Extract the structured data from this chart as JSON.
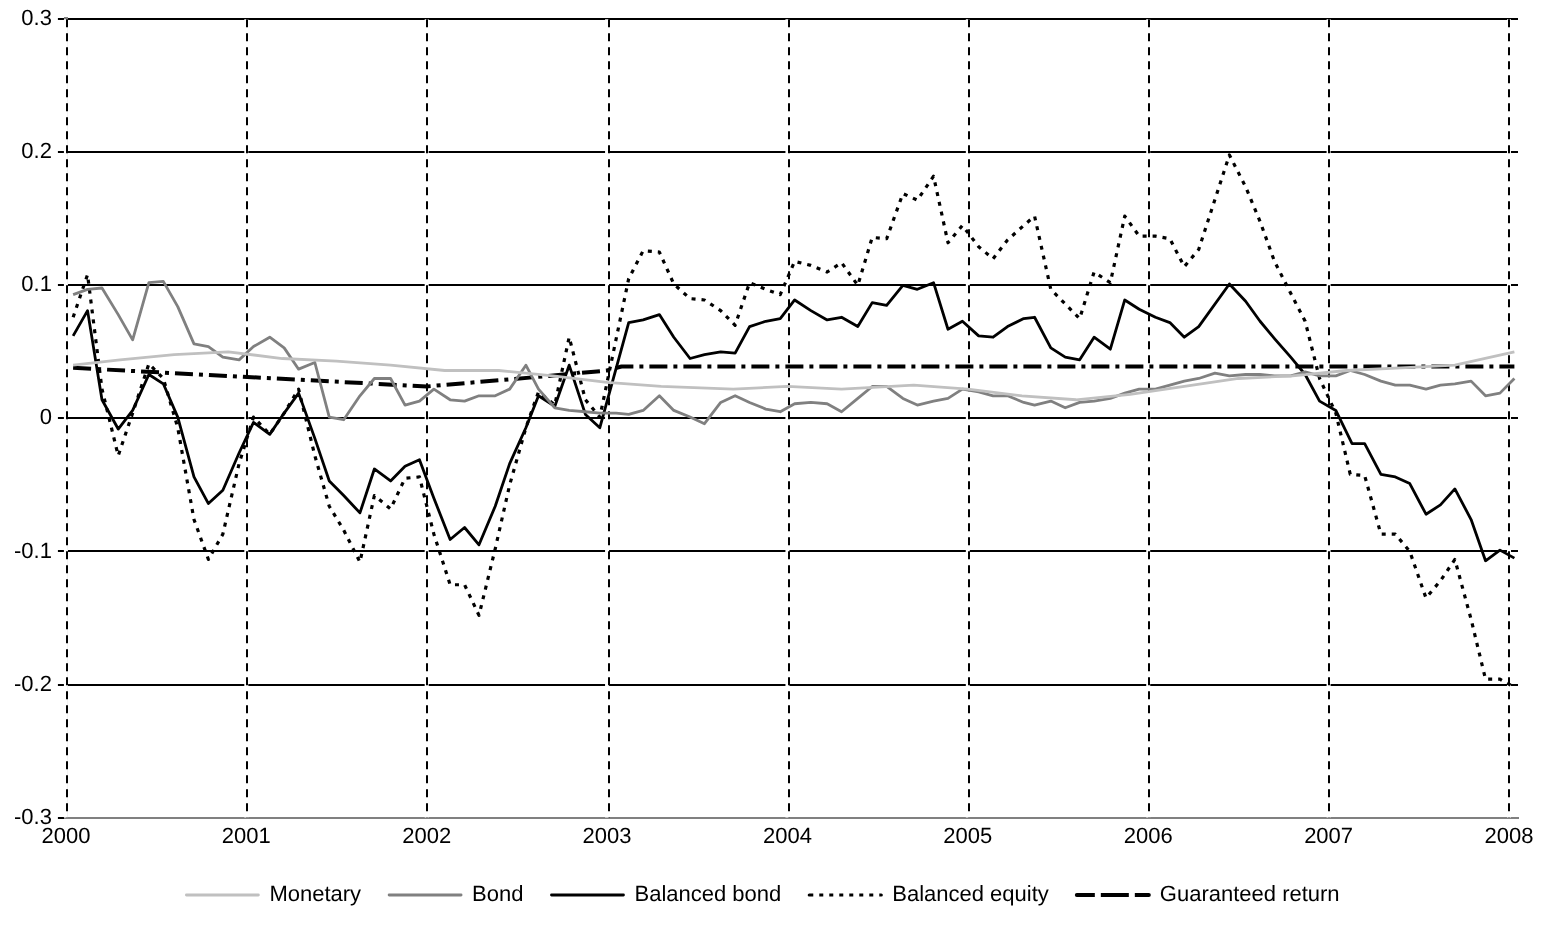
{
  "chart_data": {
    "type": "line",
    "xlim": [
      2000,
      2008.05
    ],
    "xticks": [
      2000,
      2001,
      2002,
      2003,
      2004,
      2005,
      2006,
      2007,
      2008
    ],
    "ylim": [
      -0.3,
      0.3
    ],
    "yticks": [
      -0.3,
      -0.2,
      -0.1,
      0,
      0.1,
      0.2,
      0.3
    ],
    "grid": true,
    "legend": "bottom",
    "marker": "none",
    "series": [
      {
        "name": "Monetary",
        "color": "#c0c0c0",
        "line_style": "solid",
        "x": [
          2000.04,
          2000.3,
          2000.6,
          2000.9,
          2001.2,
          2001.5,
          2001.8,
          2002.1,
          2002.4,
          2002.7,
          2003.0,
          2003.3,
          2003.7,
          2004.0,
          2004.3,
          2004.7,
          2005.0,
          2005.3,
          2005.6,
          2005.9,
          2006.2,
          2006.5,
          2006.8,
          2007.1,
          2007.4,
          2007.7,
          2008.03
        ],
        "values": [
          0.04,
          0.044,
          0.048,
          0.05,
          0.045,
          0.043,
          0.04,
          0.036,
          0.036,
          0.032,
          0.027,
          0.024,
          0.022,
          0.024,
          0.022,
          0.025,
          0.022,
          0.017,
          0.014,
          0.018,
          0.024,
          0.03,
          0.032,
          0.036,
          0.038,
          0.04,
          0.05
        ]
      },
      {
        "name": "Bond",
        "color": "#808080",
        "line_style": "solid",
        "x": [
          2000.04,
          2000.12,
          2000.2,
          2000.29,
          2000.37,
          2000.46,
          2000.54,
          2000.62,
          2000.71,
          2000.79,
          2000.87,
          2000.96,
          2001.04,
          2001.13,
          2001.21,
          2001.29,
          2001.38,
          2001.46,
          2001.54,
          2001.63,
          2001.71,
          2001.8,
          2001.88,
          2001.96,
          2002.04,
          2002.13,
          2002.21,
          2002.29,
          2002.38,
          2002.46,
          2002.55,
          2002.62,
          2002.71,
          2002.79,
          2002.88,
          2002.96,
          2003.05,
          2003.12,
          2003.2,
          2003.29,
          2003.37,
          2003.46,
          2003.54,
          2003.63,
          2003.71,
          2003.79,
          2003.88,
          2003.96,
          2004.04,
          2004.13,
          2004.22,
          2004.3,
          2004.39,
          2004.47,
          2004.55,
          2004.64,
          2004.72,
          2004.81,
          2004.89,
          2004.97,
          2005.06,
          2005.14,
          2005.22,
          2005.31,
          2005.37,
          2005.46,
          2005.54,
          2005.62,
          2005.7,
          2005.79,
          2005.87,
          2005.95,
          2006.04,
          2006.12,
          2006.2,
          2006.28,
          2006.37,
          2006.45,
          2006.54,
          2006.62,
          2006.7,
          2006.79,
          2006.87,
          2006.95,
          2007.04,
          2007.12,
          2007.2,
          2007.29,
          2007.37,
          2007.45,
          2007.54,
          2007.62,
          2007.7,
          2007.79,
          2007.87,
          2007.95,
          2008.03
        ],
        "values": [
          0.093,
          0.097,
          0.098,
          0.078,
          0.059,
          0.102,
          0.103,
          0.084,
          0.056,
          0.054,
          0.046,
          0.044,
          0.054,
          0.061,
          0.053,
          0.037,
          0.042,
          0.001,
          -0.001,
          0.017,
          0.03,
          0.03,
          0.01,
          0.013,
          0.022,
          0.014,
          0.013,
          0.017,
          0.017,
          0.022,
          0.04,
          0.022,
          0.008,
          0.006,
          0.005,
          0.004,
          0.004,
          0.003,
          0.006,
          0.017,
          0.006,
          0.001,
          -0.004,
          0.012,
          0.017,
          0.012,
          0.007,
          0.005,
          0.011,
          0.012,
          0.011,
          0.005,
          0.015,
          0.024,
          0.024,
          0.015,
          0.01,
          0.013,
          0.015,
          0.022,
          0.02,
          0.017,
          0.017,
          0.012,
          0.01,
          0.013,
          0.008,
          0.012,
          0.013,
          0.015,
          0.019,
          0.022,
          0.022,
          0.025,
          0.028,
          0.03,
          0.034,
          0.032,
          0.033,
          0.033,
          0.032,
          0.032,
          0.035,
          0.032,
          0.032,
          0.036,
          0.033,
          0.028,
          0.025,
          0.025,
          0.022,
          0.025,
          0.026,
          0.028,
          0.017,
          0.019,
          0.03
        ]
      },
      {
        "name": "Balanced bond",
        "color": "#000000",
        "line_style": "solid",
        "x": [
          2000.04,
          2000.12,
          2000.2,
          2000.29,
          2000.37,
          2000.46,
          2000.54,
          2000.62,
          2000.71,
          2000.79,
          2000.87,
          2000.96,
          2001.04,
          2001.13,
          2001.21,
          2001.29,
          2001.38,
          2001.46,
          2001.54,
          2001.63,
          2001.71,
          2001.8,
          2001.88,
          2001.96,
          2002.04,
          2002.13,
          2002.21,
          2002.29,
          2002.38,
          2002.46,
          2002.55,
          2002.62,
          2002.71,
          2002.79,
          2002.88,
          2002.96,
          2003.12,
          2003.2,
          2003.29,
          2003.37,
          2003.46,
          2003.54,
          2003.63,
          2003.71,
          2003.79,
          2003.88,
          2003.96,
          2004.04,
          2004.13,
          2004.22,
          2004.3,
          2004.39,
          2004.47,
          2004.55,
          2004.64,
          2004.72,
          2004.81,
          2004.89,
          2004.97,
          2005.06,
          2005.14,
          2005.22,
          2005.31,
          2005.37,
          2005.46,
          2005.54,
          2005.62,
          2005.7,
          2005.79,
          2005.87,
          2005.95,
          2006.04,
          2006.12,
          2006.2,
          2006.28,
          2006.45,
          2006.54,
          2006.62,
          2006.7,
          2006.79,
          2006.87,
          2006.95,
          2007.04,
          2007.13,
          2007.2,
          2007.29,
          2007.37,
          2007.45,
          2007.54,
          2007.62,
          2007.7,
          2007.79,
          2007.87,
          2007.95,
          2008.03
        ],
        "values": [
          0.062,
          0.081,
          0.014,
          -0.008,
          0.006,
          0.033,
          0.026,
          0.001,
          -0.044,
          -0.064,
          -0.054,
          -0.026,
          -0.003,
          -0.012,
          0.004,
          0.019,
          -0.015,
          -0.047,
          -0.058,
          -0.071,
          -0.038,
          -0.047,
          -0.036,
          -0.031,
          -0.06,
          -0.091,
          -0.082,
          -0.095,
          -0.066,
          -0.034,
          -0.007,
          0.017,
          0.009,
          0.04,
          0.003,
          -0.007,
          0.072,
          0.074,
          0.078,
          0.061,
          0.045,
          0.048,
          0.05,
          0.049,
          0.069,
          0.073,
          0.075,
          0.089,
          0.081,
          0.074,
          0.076,
          0.069,
          0.087,
          0.085,
          0.1,
          0.097,
          0.102,
          0.067,
          0.073,
          0.062,
          0.061,
          0.069,
          0.075,
          0.076,
          0.053,
          0.046,
          0.044,
          0.061,
          0.052,
          0.089,
          0.082,
          0.076,
          0.072,
          0.061,
          0.069,
          0.101,
          0.088,
          0.073,
          0.06,
          0.046,
          0.033,
          0.013,
          0.006,
          -0.019,
          -0.019,
          -0.042,
          -0.044,
          -0.049,
          -0.072,
          -0.065,
          -0.053,
          -0.076,
          -0.107,
          -0.099,
          -0.105
        ]
      },
      {
        "name": "Balanced equity",
        "color": "#000000",
        "line_style": "dotted",
        "x": [
          2000.04,
          2000.12,
          2000.2,
          2000.29,
          2000.37,
          2000.46,
          2000.54,
          2000.62,
          2000.71,
          2000.79,
          2000.87,
          2000.96,
          2001.04,
          2001.13,
          2001.21,
          2001.29,
          2001.38,
          2001.46,
          2001.54,
          2001.63,
          2001.71,
          2001.8,
          2001.88,
          2001.96,
          2002.04,
          2002.13,
          2002.21,
          2002.29,
          2002.38,
          2002.46,
          2002.55,
          2002.62,
          2002.71,
          2002.79,
          2002.88,
          2002.96,
          2003.12,
          2003.2,
          2003.29,
          2003.37,
          2003.46,
          2003.54,
          2003.63,
          2003.71,
          2003.79,
          2003.88,
          2003.96,
          2004.04,
          2004.13,
          2004.22,
          2004.3,
          2004.39,
          2004.47,
          2004.55,
          2004.64,
          2004.72,
          2004.81,
          2004.89,
          2004.97,
          2005.06,
          2005.14,
          2005.22,
          2005.31,
          2005.37,
          2005.46,
          2005.54,
          2005.62,
          2005.7,
          2005.79,
          2005.87,
          2005.95,
          2006.04,
          2006.12,
          2006.2,
          2006.28,
          2006.45,
          2006.54,
          2006.62,
          2006.7,
          2006.79,
          2006.87,
          2006.95,
          2007.04,
          2007.12,
          2007.2,
          2007.29,
          2007.37,
          2007.45,
          2007.54,
          2007.62,
          2007.7,
          2007.79,
          2007.87,
          2007.95,
          2008.03
        ],
        "values": [
          0.076,
          0.108,
          0.022,
          -0.028,
          0.004,
          0.041,
          0.03,
          -0.007,
          -0.076,
          -0.106,
          -0.087,
          -0.034,
          0.001,
          -0.012,
          0.004,
          0.022,
          -0.028,
          -0.066,
          -0.084,
          -0.108,
          -0.058,
          -0.068,
          -0.045,
          -0.044,
          -0.087,
          -0.125,
          -0.125,
          -0.148,
          -0.098,
          -0.05,
          -0.007,
          0.02,
          0.01,
          0.061,
          0.014,
          0.001,
          0.105,
          0.126,
          0.125,
          0.101,
          0.09,
          0.089,
          0.081,
          0.07,
          0.102,
          0.097,
          0.093,
          0.118,
          0.115,
          0.11,
          0.117,
          0.1,
          0.136,
          0.135,
          0.169,
          0.164,
          0.182,
          0.132,
          0.145,
          0.129,
          0.12,
          0.134,
          0.145,
          0.152,
          0.097,
          0.086,
          0.075,
          0.11,
          0.102,
          0.152,
          0.137,
          0.137,
          0.135,
          0.114,
          0.127,
          0.198,
          0.174,
          0.148,
          0.118,
          0.094,
          0.073,
          0.03,
          0.004,
          -0.042,
          -0.043,
          -0.087,
          -0.087,
          -0.1,
          -0.135,
          -0.122,
          -0.106,
          -0.151,
          -0.196,
          -0.196,
          -0.202
        ]
      },
      {
        "name": "Guaranteed return",
        "color": "#000000",
        "line_style": "dashed",
        "x": [
          2000.04,
          2002.0,
          2002.6,
          2003.0,
          2003.08,
          2008.03
        ],
        "values": [
          0.038,
          0.024,
          0.031,
          0.036,
          0.039,
          0.039
        ]
      }
    ]
  }
}
